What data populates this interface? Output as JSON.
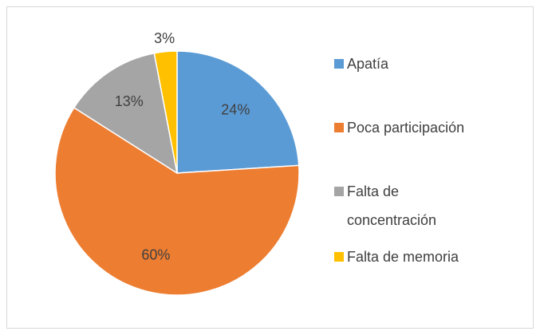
{
  "chart_data": {
    "type": "pie",
    "categories": [
      "Apatía",
      "Poca participación",
      "Falta de concentración",
      "Falta de memoria"
    ],
    "values": [
      24,
      60,
      13,
      3
    ],
    "value_labels": [
      "24%",
      "60%",
      "13%",
      "3%"
    ],
    "colors": [
      "#5b9bd5",
      "#ed7d31",
      "#a5a5a5",
      "#ffc000"
    ],
    "legend": "right"
  }
}
